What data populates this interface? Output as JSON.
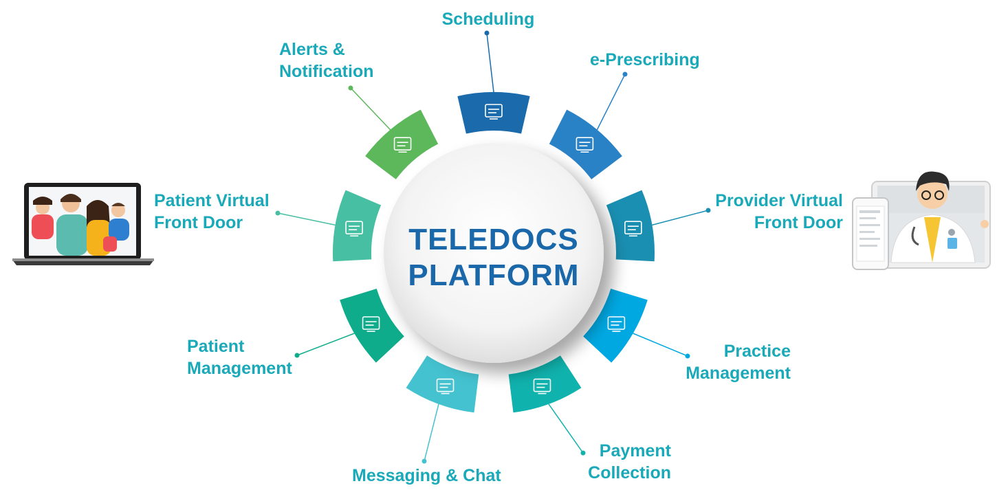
{
  "center": {
    "line1": "TELEDOCS",
    "line2": "PLATFORM"
  },
  "colors": {
    "label": "#1aa9b8",
    "title": "#1a67a9",
    "scheduling": "#1a6aac",
    "eprescribing": "#2a82c6",
    "provider": "#1a8fb2",
    "practice": "#00a8e2",
    "payment": "#10b2ad",
    "messaging": "#44c2cf",
    "patient_mgmt": "#0eac8a",
    "patient_door": "#46bfa2",
    "alerts": "#5cb85a"
  },
  "segments": [
    {
      "id": "scheduling",
      "icon": "calendar-icon",
      "lines": [
        "Scheduling"
      ]
    },
    {
      "id": "eprescribing",
      "icon": "rx-monitor-icon",
      "lines": [
        "e-Prescribing"
      ]
    },
    {
      "id": "provider",
      "icon": "doctor-laptop-icon",
      "lines": [
        "Provider Virtual",
        "Front Door"
      ]
    },
    {
      "id": "practice",
      "icon": "practice-gear-icon",
      "lines": [
        "Practice",
        "Management"
      ]
    },
    {
      "id": "payment",
      "icon": "hand-money-icon",
      "lines": [
        "Payment",
        "Collection"
      ]
    },
    {
      "id": "messaging",
      "icon": "chat-bubbles-icon",
      "lines": [
        "Messaging & Chat"
      ]
    },
    {
      "id": "patient_mgmt",
      "icon": "patient-gear-icon",
      "lines": [
        "Patient",
        "Management"
      ]
    },
    {
      "id": "patient_door",
      "icon": "patient-laptop-icon",
      "lines": [
        "Patient Virtual",
        "Front Door"
      ]
    },
    {
      "id": "alerts",
      "icon": "phone-alert-icon",
      "lines": [
        "Alerts &",
        "Notification"
      ]
    }
  ]
}
